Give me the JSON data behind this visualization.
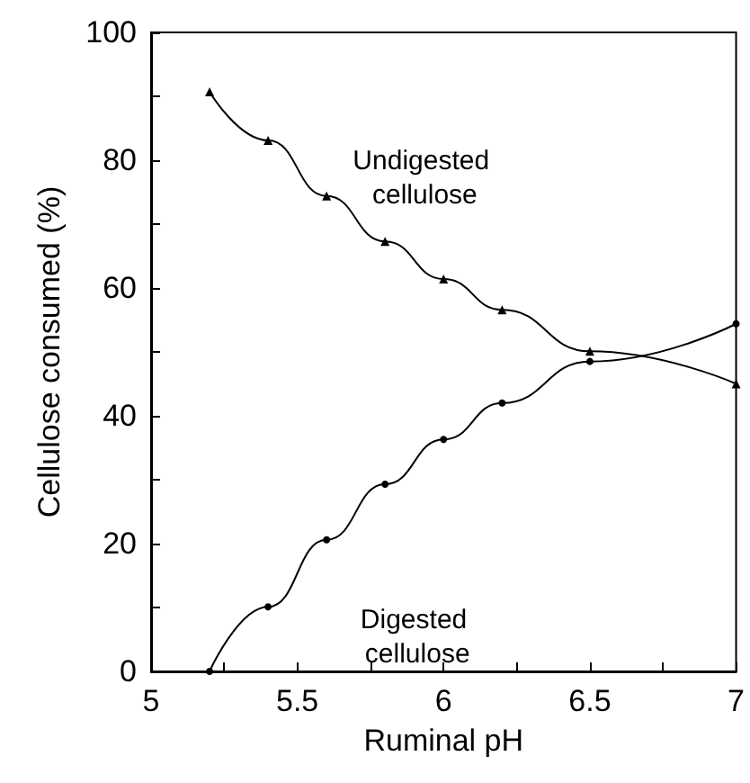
{
  "chart_data": {
    "type": "line",
    "xlabel": "Ruminal pH",
    "ylabel": "Cellulose consumed (%)",
    "xlim": [
      5,
      7
    ],
    "xticks": [
      5,
      {
        "value": 5.25,
        "label": null
      },
      5.5,
      {
        "value": 5.75,
        "label": null
      },
      6,
      {
        "value": 6.25,
        "label": null
      },
      6.5,
      {
        "value": 6.75,
        "label": null
      },
      7
    ],
    "ylim": [
      0,
      100
    ],
    "yticks": [
      0,
      {
        "value": 10,
        "label": null
      },
      20,
      {
        "value": 30,
        "label": null
      },
      40,
      {
        "value": 50,
        "label": null
      },
      60,
      {
        "value": 70,
        "label": null
      },
      80,
      {
        "value": 90,
        "label": null
      },
      100
    ],
    "grid": false,
    "legend": false,
    "line_style": "solid",
    "x": [
      5.2,
      5.4,
      5.6,
      5.8,
      6.0,
      6.2,
      6.5,
      7.0
    ],
    "series": [
      {
        "name": "Undigested cellulose",
        "color": "#000000",
        "marker": "triangle",
        "values": [
          90.7,
          83.1,
          74.4,
          67.3,
          61.4,
          56.6,
          50.1,
          45.0
        ]
      },
      {
        "name": "Digested cellulose",
        "color": "#000000",
        "marker": "circle",
        "values": [
          0,
          10.1,
          20.6,
          29.3,
          36.3,
          42.0,
          48.5,
          54.4
        ]
      }
    ]
  }
}
